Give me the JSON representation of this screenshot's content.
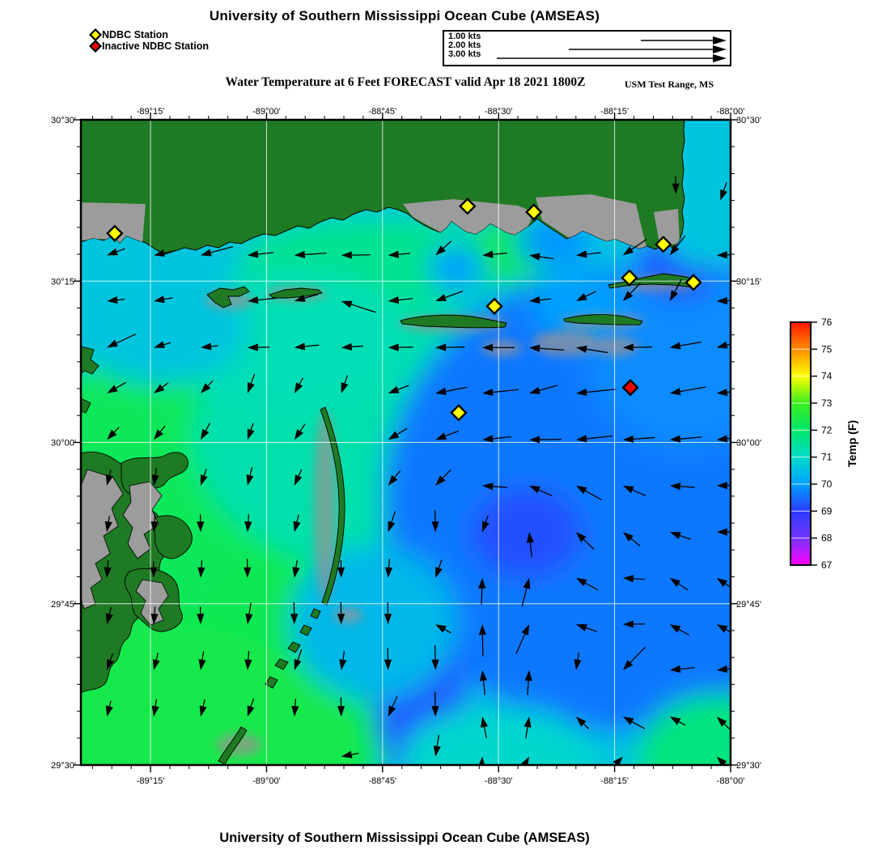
{
  "page": {
    "title_top": "University of Southern Mississippi Ocean Cube (AMSEAS)",
    "title_bottom": "University of Southern Mississippi Ocean Cube (AMSEAS)",
    "subtitle": "Water Temperature at 6 Feet FORECAST valid Apr 18 2021 1800Z",
    "region_label": "USM Test Range, MS"
  },
  "legend": {
    "items": [
      {
        "label": "NDBC Station",
        "color": "#ffff00"
      },
      {
        "label": "Inactive NDBC Station",
        "color": "#ee0000"
      }
    ]
  },
  "scale_box": {
    "rows": [
      {
        "label": "1.00 kts",
        "kts": 1.0
      },
      {
        "label": "2.00 kts",
        "kts": 2.0
      },
      {
        "label": "3.00 kts",
        "kts": 3.0
      }
    ]
  },
  "colors": {
    "land": "#1e7a23",
    "coastal_gray": "#9c9c9c",
    "station_active": "#ffff00",
    "station_inactive": "#ee0000"
  },
  "chart_data": {
    "type": "map",
    "title": "University of Southern Mississippi Ocean Cube (AMSEAS)",
    "variable": "Water Temperature at 6 Feet (F)",
    "forecast_valid": "Apr 18 2021 1800Z",
    "region": "USM Test Range, MS",
    "lon_range": [
      -89.4,
      -88.0
    ],
    "lat_range": [
      29.5,
      30.5
    ],
    "x_axis": {
      "ticks": [
        -89.25,
        -89.0,
        -88.75,
        -88.5,
        -88.25,
        -88.0
      ],
      "labels": [
        "-89°15'",
        "-89°00'",
        "-88°45'",
        "-88°30'",
        "-88°15'",
        "-88°00'"
      ]
    },
    "y_axis": {
      "ticks": [
        30.5,
        30.25,
        30.0,
        29.75,
        29.5
      ],
      "labels": [
        "30°30'",
        "30°15'",
        "30°00'",
        "29°45'",
        "29°30'"
      ]
    },
    "colorbar": {
      "title": "Temp (F)",
      "min": 67,
      "max": 76,
      "tick_values": [
        67,
        68,
        69,
        70,
        71,
        72,
        73,
        74,
        75,
        76
      ],
      "colors": [
        "#ff00ff",
        "#7733ff",
        "#2a3cff",
        "#00a0ff",
        "#00ddc8",
        "#00e76a",
        "#3aed1c",
        "#ffff00",
        "#ff8c00",
        "#ff1400"
      ]
    },
    "water_temp_regions": {
      "base_f": 70.6,
      "blobs": [
        [
          -89.16,
          29.67,
          0.49,
          0.31,
          72.3
        ],
        [
          -89.29,
          29.93,
          0.28,
          0.2,
          72.2
        ],
        [
          -89.26,
          29.53,
          0.45,
          0.19,
          72.4
        ],
        [
          -88.76,
          30.28,
          0.3,
          0.07,
          71.6
        ],
        [
          -88.46,
          30.3,
          0.1,
          0.05,
          72.2
        ],
        [
          -88.76,
          30.01,
          0.4,
          0.21,
          71.3
        ],
        [
          -88.25,
          29.91,
          0.5,
          0.36,
          69.6
        ],
        [
          -88.1,
          30.15,
          0.21,
          0.16,
          69.8
        ],
        [
          -88.44,
          29.86,
          0.12,
          0.07,
          69.2
        ],
        [
          -88.67,
          29.6,
          0.1,
          0.13,
          69.3
        ],
        [
          -88.11,
          30.28,
          0.09,
          0.06,
          69.3
        ],
        [
          -88.38,
          30.31,
          0.08,
          0.04,
          69.9
        ],
        [
          -88.03,
          29.51,
          0.17,
          0.1,
          71.8
        ],
        [
          -88.5,
          29.51,
          0.21,
          0.08,
          70.9
        ],
        [
          -88.05,
          30.37,
          0.12,
          0.1,
          70.6
        ],
        [
          -88.95,
          30.16,
          0.26,
          0.11,
          71.2
        ],
        [
          -89.23,
          30.18,
          0.19,
          0.09,
          70.6
        ],
        [
          -88.33,
          30.21,
          0.1,
          0.05,
          70.0
        ],
        [
          -88.59,
          30.27,
          0.06,
          0.035,
          70.0
        ],
        [
          -88.77,
          29.72,
          0.18,
          0.12,
          70.4
        ]
      ]
    },
    "stations": {
      "active": [
        [
          -89.327,
          30.324
        ],
        [
          -88.567,
          30.366
        ],
        [
          -88.424,
          30.357
        ],
        [
          -88.145,
          30.307
        ],
        [
          -88.218,
          30.255
        ],
        [
          -88.08,
          30.248
        ],
        [
          -88.509,
          30.211
        ],
        [
          -88.586,
          30.046
        ]
      ],
      "inactive": [
        [
          -88.216,
          30.085
        ]
      ]
    },
    "currents": {
      "units": "kts",
      "arrows": [
        [
          -89.344,
          30.29,
          200,
          0.12
        ],
        [
          -89.243,
          30.29,
          192,
          0.16
        ],
        [
          -89.142,
          30.29,
          195,
          0.32
        ],
        [
          -89.041,
          30.29,
          186,
          0.22
        ],
        [
          -88.94,
          30.29,
          184,
          0.3
        ],
        [
          -88.839,
          30.29,
          181,
          0.26
        ],
        [
          -88.738,
          30.29,
          185,
          0.16
        ],
        [
          -88.636,
          30.29,
          222,
          0.15
        ],
        [
          -88.535,
          30.29,
          185,
          0.2
        ],
        [
          -88.434,
          30.29,
          172,
          0.2
        ],
        [
          -88.333,
          30.29,
          186,
          0.2
        ],
        [
          -88.232,
          30.29,
          214,
          0.25
        ],
        [
          -88.131,
          30.29,
          232,
          0.2
        ],
        [
          -88.03,
          30.29,
          182,
          0.2
        ],
        [
          -89.344,
          30.219,
          186,
          0.1
        ],
        [
          -89.243,
          30.219,
          190,
          0.12
        ],
        [
          -89.041,
          30.219,
          186,
          0.26
        ],
        [
          -88.94,
          30.219,
          196,
          0.2
        ],
        [
          -88.839,
          30.219,
          162,
          0.36
        ],
        [
          -88.738,
          30.219,
          186,
          0.2
        ],
        [
          -88.636,
          30.219,
          200,
          0.26
        ],
        [
          -88.434,
          30.219,
          186,
          0.16
        ],
        [
          -88.333,
          30.219,
          206,
          0.16
        ],
        [
          -88.232,
          30.219,
          226,
          0.2
        ],
        [
          -88.131,
          30.219,
          242,
          0.2
        ],
        [
          -88.03,
          30.219,
          182,
          0.16
        ],
        [
          -89.344,
          30.147,
          205,
          0.3
        ],
        [
          -89.243,
          30.147,
          196,
          0.1
        ],
        [
          -89.142,
          30.147,
          186,
          0.1
        ],
        [
          -89.041,
          30.147,
          181,
          0.16
        ],
        [
          -88.94,
          30.147,
          186,
          0.2
        ],
        [
          -88.839,
          30.147,
          184,
          0.16
        ],
        [
          -88.738,
          30.147,
          181,
          0.2
        ],
        [
          -88.636,
          30.147,
          181,
          0.26
        ],
        [
          -88.535,
          30.147,
          180,
          0.3
        ],
        [
          -88.434,
          30.147,
          176,
          0.34
        ],
        [
          -88.333,
          30.147,
          171,
          0.3
        ],
        [
          -88.232,
          30.147,
          181,
          0.26
        ],
        [
          -88.131,
          30.147,
          190,
          0.3
        ],
        [
          -88.03,
          30.147,
          194,
          0.36
        ],
        [
          -89.344,
          30.076,
          210,
          0.16
        ],
        [
          -89.243,
          30.076,
          216,
          0.1
        ],
        [
          -89.142,
          30.076,
          226,
          0.1
        ],
        [
          -89.041,
          30.076,
          250,
          0.14
        ],
        [
          -88.94,
          30.076,
          241,
          0.1
        ],
        [
          -88.839,
          30.076,
          251,
          0.12
        ],
        [
          -88.738,
          30.076,
          201,
          0.16
        ],
        [
          -88.636,
          30.076,
          191,
          0.3
        ],
        [
          -88.535,
          30.076,
          186,
          0.36
        ],
        [
          -88.434,
          30.076,
          196,
          0.26
        ],
        [
          -88.333,
          30.076,
          186,
          0.4
        ],
        [
          -88.131,
          30.076,
          190,
          0.36
        ],
        [
          -88.03,
          30.076,
          186,
          0.42
        ],
        [
          -89.344,
          30.004,
          226,
          0.1
        ],
        [
          -89.243,
          30.004,
          231,
          0.1
        ],
        [
          -89.142,
          30.004,
          241,
          0.12
        ],
        [
          -89.041,
          30.004,
          251,
          0.1
        ],
        [
          -88.94,
          30.004,
          236,
          0.12
        ],
        [
          -88.738,
          30.004,
          211,
          0.16
        ],
        [
          -88.636,
          30.004,
          201,
          0.2
        ],
        [
          -88.535,
          30.004,
          186,
          0.26
        ],
        [
          -88.434,
          30.004,
          181,
          0.3
        ],
        [
          -88.333,
          30.004,
          186,
          0.36
        ],
        [
          -88.232,
          30.004,
          184,
          0.3
        ],
        [
          -88.131,
          30.004,
          185,
          0.3
        ],
        [
          -88.03,
          30.004,
          186,
          0.36
        ],
        [
          -89.344,
          29.933,
          256,
          0.08
        ],
        [
          -89.243,
          29.933,
          261,
          0.1
        ],
        [
          -89.142,
          29.933,
          251,
          0.1
        ],
        [
          -89.041,
          29.933,
          256,
          0.12
        ],
        [
          -88.94,
          29.933,
          246,
          0.1
        ],
        [
          -88.738,
          29.933,
          231,
          0.12
        ],
        [
          -88.636,
          29.933,
          226,
          0.16
        ],
        [
          -88.535,
          29.933,
          176,
          0.2
        ],
        [
          -88.434,
          29.933,
          156,
          0.2
        ],
        [
          -88.333,
          29.933,
          151,
          0.26
        ],
        [
          -88.232,
          29.933,
          156,
          0.2
        ],
        [
          -88.131,
          29.933,
          176,
          0.2
        ],
        [
          -88.03,
          29.933,
          181,
          0.26
        ],
        [
          -89.344,
          29.861,
          261,
          0.08
        ],
        [
          -89.243,
          29.861,
          266,
          0.1
        ],
        [
          -89.142,
          29.861,
          271,
          0.1
        ],
        [
          -89.041,
          29.861,
          266,
          0.1
        ],
        [
          -88.94,
          29.861,
          256,
          0.1
        ],
        [
          -88.738,
          29.861,
          251,
          0.16
        ],
        [
          -88.636,
          29.861,
          271,
          0.16
        ],
        [
          -88.535,
          29.861,
          251,
          0.1
        ],
        [
          -88.434,
          29.861,
          96,
          0.2
        ],
        [
          -88.333,
          29.861,
          136,
          0.2
        ],
        [
          -88.232,
          29.861,
          141,
          0.16
        ],
        [
          -88.131,
          29.861,
          161,
          0.16
        ],
        [
          -88.03,
          29.861,
          181,
          0.2
        ],
        [
          -89.344,
          29.79,
          266,
          0.1
        ],
        [
          -89.243,
          29.79,
          271,
          0.08
        ],
        [
          -89.142,
          29.79,
          266,
          0.1
        ],
        [
          -89.041,
          29.79,
          271,
          0.12
        ],
        [
          -88.94,
          29.79,
          261,
          0.1
        ],
        [
          -88.839,
          29.79,
          271,
          0.1
        ],
        [
          -88.738,
          29.79,
          266,
          0.12
        ],
        [
          -88.636,
          29.79,
          251,
          0.12
        ],
        [
          -88.535,
          29.79,
          88,
          0.22
        ],
        [
          -88.434,
          29.79,
          76,
          0.26
        ],
        [
          -88.333,
          29.79,
          151,
          0.2
        ],
        [
          -88.232,
          29.79,
          176,
          0.16
        ],
        [
          -88.131,
          29.79,
          146,
          0.16
        ],
        [
          -88.03,
          29.79,
          146,
          0.22
        ],
        [
          -89.344,
          29.718,
          256,
          0.1
        ],
        [
          -89.243,
          29.718,
          266,
          0.1
        ],
        [
          -89.142,
          29.718,
          271,
          0.1
        ],
        [
          -89.041,
          29.718,
          261,
          0.16
        ],
        [
          -88.94,
          29.718,
          271,
          0.16
        ],
        [
          -88.839,
          29.718,
          271,
          0.16
        ],
        [
          -88.738,
          29.718,
          271,
          0.16
        ],
        [
          -88.636,
          29.718,
          151,
          0.1
        ],
        [
          -88.535,
          29.718,
          91,
          0.3
        ],
        [
          -88.434,
          29.718,
          66,
          0.3
        ],
        [
          -88.333,
          29.718,
          161,
          0.16
        ],
        [
          -88.232,
          29.718,
          181,
          0.16
        ],
        [
          -88.131,
          29.718,
          151,
          0.16
        ],
        [
          -88.03,
          29.718,
          151,
          0.26
        ],
        [
          -89.344,
          29.647,
          251,
          0.1
        ],
        [
          -89.243,
          29.647,
          256,
          0.1
        ],
        [
          -89.142,
          29.647,
          261,
          0.12
        ],
        [
          -89.041,
          29.647,
          266,
          0.12
        ],
        [
          -88.94,
          29.647,
          251,
          0.16
        ],
        [
          -88.839,
          29.647,
          261,
          0.12
        ],
        [
          -88.738,
          29.647,
          271,
          0.16
        ],
        [
          -88.636,
          29.647,
          271,
          0.2
        ],
        [
          -88.535,
          29.647,
          96,
          0.2
        ],
        [
          -88.434,
          29.647,
          86,
          0.2
        ],
        [
          -88.333,
          29.647,
          261,
          0.1
        ],
        [
          -88.232,
          29.647,
          226,
          0.3
        ],
        [
          -88.131,
          29.647,
          186,
          0.2
        ],
        [
          -88.03,
          29.647,
          186,
          0.36
        ],
        [
          -89.344,
          29.575,
          256,
          0.08
        ],
        [
          -89.243,
          29.575,
          261,
          0.1
        ],
        [
          -89.142,
          29.575,
          256,
          0.1
        ],
        [
          -89.041,
          29.575,
          251,
          0.12
        ],
        [
          -88.94,
          29.575,
          266,
          0.1
        ],
        [
          -88.839,
          29.575,
          271,
          0.12
        ],
        [
          -88.738,
          29.575,
          246,
          0.16
        ],
        [
          -88.636,
          29.575,
          271,
          0.2
        ],
        [
          -88.535,
          29.575,
          101,
          0.16
        ],
        [
          -88.434,
          29.575,
          81,
          0.16
        ],
        [
          -88.333,
          29.575,
          136,
          0.1
        ],
        [
          -88.232,
          29.575,
          151,
          0.2
        ],
        [
          -88.131,
          29.575,
          151,
          0.1
        ],
        [
          -88.03,
          29.575,
          136,
          0.2
        ],
        [
          -88.839,
          29.513,
          191,
          0.1
        ],
        [
          -88.636,
          29.513,
          261,
          0.16
        ],
        [
          -88.535,
          29.513,
          86,
          0.2
        ],
        [
          -88.434,
          29.513,
          61,
          0.16
        ],
        [
          -88.232,
          29.513,
          46,
          0.16
        ],
        [
          -88.03,
          29.513,
          136,
          0.1
        ],
        [
          -88.118,
          30.385,
          271,
          0.1
        ],
        [
          -88.022,
          30.375,
          251,
          0.12
        ]
      ]
    }
  }
}
